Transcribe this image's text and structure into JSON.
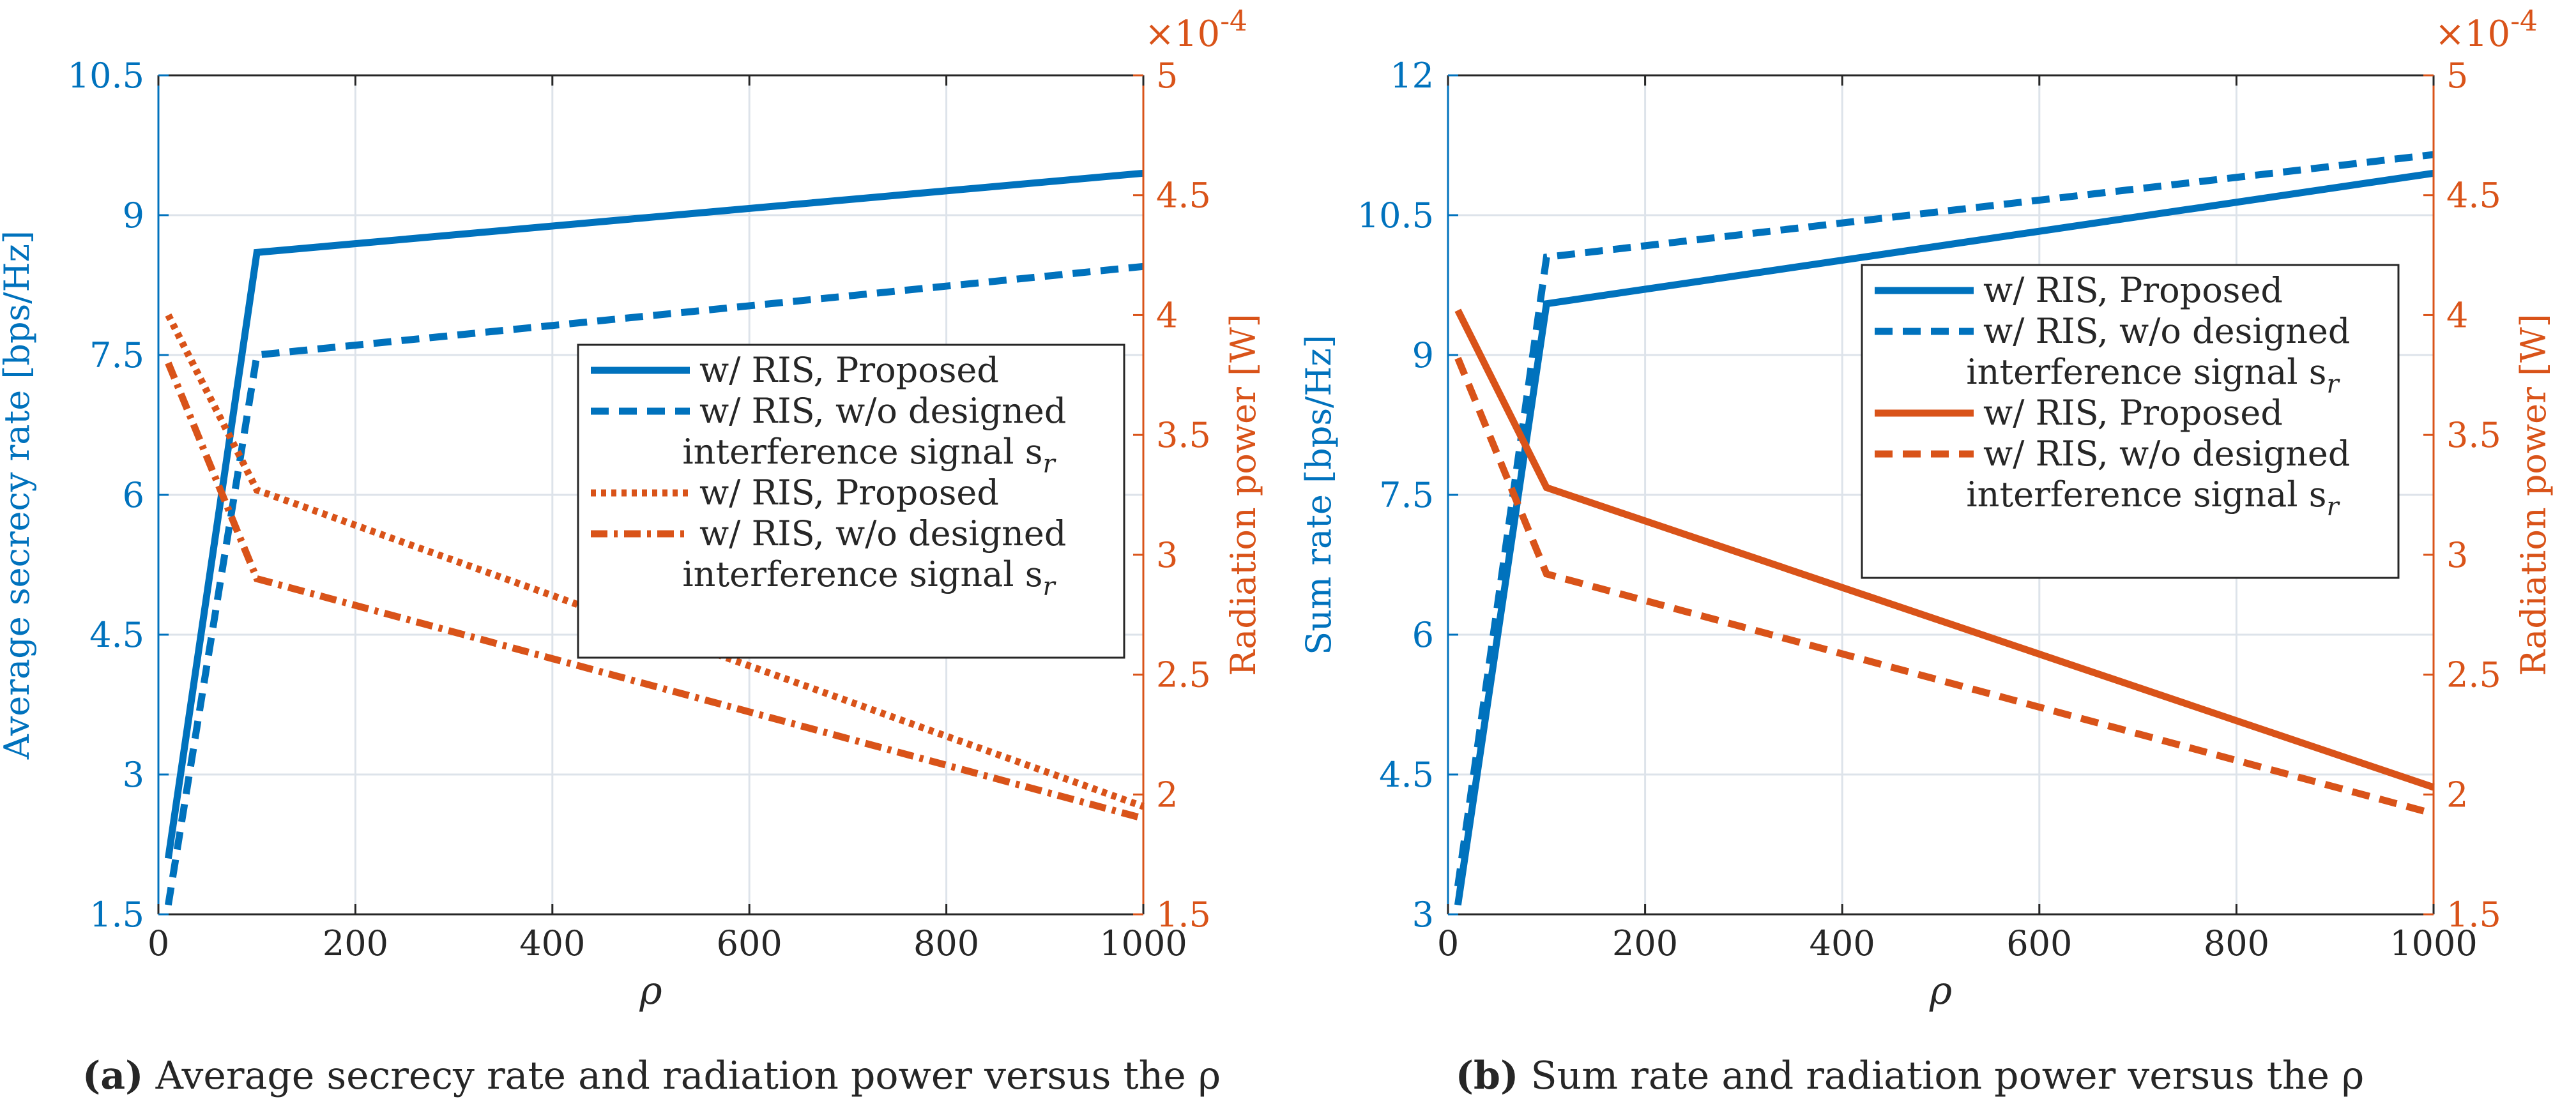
{
  "colors": {
    "blue": "#0072BD",
    "orange": "#D95319",
    "grid": "#dde3ea",
    "axis": "#262626"
  },
  "chart_data": [
    {
      "type": "line",
      "panel": "a",
      "caption_label": "(a)",
      "caption_text": " Average secrecy rate and radiation power versus the ρ",
      "xlabel": "ρ",
      "ylabel_left": "Average secrecy rate [bps/Hz]",
      "ylabel_right": "Radiation power  [W]",
      "right_exponent": "×10",
      "right_exponent_power": "-4",
      "xlim": [
        0,
        1000
      ],
      "xticks": [
        0,
        200,
        400,
        600,
        800,
        1000
      ],
      "xtick_labels": [
        "0",
        "200",
        "400",
        "600",
        "800",
        "1000"
      ],
      "ylim_left": [
        1.5,
        10.5
      ],
      "yticks_left": [
        1.5,
        3,
        4.5,
        6,
        7.5,
        9,
        10.5
      ],
      "ytick_labels_left": [
        "1.5",
        "3",
        "4.5",
        "6",
        "7.5",
        "9",
        "10.5"
      ],
      "ylim_right": [
        1.5,
        5
      ],
      "yticks_right": [
        1.5,
        2,
        2.5,
        3,
        3.5,
        4,
        4.5,
        5
      ],
      "ytick_labels_right": [
        "1.5",
        "2",
        "2.5",
        "3",
        "3.5",
        "4",
        "4.5",
        "5"
      ],
      "legend_position": "center-right",
      "series": [
        {
          "name": "w/ RIS, Proposed",
          "axis": "left",
          "color": "blue",
          "style": "solid",
          "x": [
            10,
            100,
            1000
          ],
          "y": [
            2.1,
            8.6,
            9.45
          ]
        },
        {
          "name": "w/ RIS, w/o designed interference signal s_r",
          "axis": "left",
          "color": "blue",
          "style": "dashed",
          "x": [
            10,
            100,
            1000
          ],
          "y": [
            1.6,
            7.5,
            8.45
          ]
        },
        {
          "name": "w/ RIS, Proposed",
          "axis": "right",
          "color": "orange",
          "style": "dotted",
          "x": [
            10,
            100,
            1000
          ],
          "y": [
            4.0,
            3.27,
            1.95
          ]
        },
        {
          "name": "w/ RIS, w/o designed interference signal s_r",
          "axis": "right",
          "color": "orange",
          "style": "dashdot",
          "x": [
            10,
            100,
            1000
          ],
          "y": [
            3.8,
            2.9,
            1.9
          ]
        }
      ],
      "legend": [
        {
          "line1": "w/ RIS, Proposed",
          "line2": "",
          "color": "blue",
          "style": "solid"
        },
        {
          "line1": "w/ RIS, w/o designed",
          "line2": "interference signal s",
          "sub": "r",
          "color": "blue",
          "style": "dashed"
        },
        {
          "line1": "w/ RIS, Proposed",
          "line2": "",
          "color": "orange",
          "style": "dotted"
        },
        {
          "line1": "w/ RIS, w/o designed",
          "line2": "interference signal s",
          "sub": "r",
          "color": "orange",
          "style": "dashdot"
        }
      ]
    },
    {
      "type": "line",
      "panel": "b",
      "caption_label": "(b)",
      "caption_text": " Sum rate and radiation power versus the ρ",
      "xlabel": "ρ",
      "ylabel_left": "Sum rate [bps/Hz]",
      "ylabel_right": "Radiation power [W]",
      "right_exponent": "×10",
      "right_exponent_power": "-4",
      "xlim": [
        0,
        1000
      ],
      "xticks": [
        0,
        200,
        400,
        600,
        800,
        1000
      ],
      "xtick_labels": [
        "0",
        "200",
        "400",
        "600",
        "800",
        "1000"
      ],
      "ylim_left": [
        3,
        12
      ],
      "yticks_left": [
        3,
        4.5,
        6,
        7.5,
        9,
        10.5,
        12
      ],
      "ytick_labels_left": [
        "3",
        "4.5",
        "6",
        "7.5",
        "9",
        "10.5",
        "12"
      ],
      "ylim_right": [
        1.5,
        5
      ],
      "yticks_right": [
        1.5,
        2,
        2.5,
        3,
        3.5,
        4,
        4.5,
        5
      ],
      "ytick_labels_right": [
        "1.5",
        "2",
        "2.5",
        "3",
        "3.5",
        "4",
        "4.5",
        "5"
      ],
      "legend_position": "upper-right",
      "series": [
        {
          "name": "w/ RIS, Proposed",
          "axis": "left",
          "color": "blue",
          "style": "solid",
          "x": [
            10,
            100,
            1000
          ],
          "y": [
            3.1,
            9.55,
            10.95
          ]
        },
        {
          "name": "w/ RIS, w/o designed interference signal s_r",
          "axis": "left",
          "color": "blue",
          "style": "dashed",
          "x": [
            10,
            100,
            1000
          ],
          "y": [
            3.3,
            10.05,
            11.15
          ]
        },
        {
          "name": "w/ RIS, Proposed",
          "axis": "right",
          "color": "orange",
          "style": "solid",
          "x": [
            10,
            100,
            1000
          ],
          "y": [
            4.02,
            3.28,
            2.03
          ]
        },
        {
          "name": "w/ RIS, w/o designed interference signal s_r",
          "axis": "right",
          "color": "orange",
          "style": "dashed",
          "x": [
            10,
            100,
            1000
          ],
          "y": [
            3.82,
            2.92,
            1.92
          ]
        }
      ],
      "legend": [
        {
          "line1": "w/ RIS, Proposed",
          "line2": "",
          "color": "blue",
          "style": "solid"
        },
        {
          "line1": "w/ RIS, w/o designed",
          "line2": "interference signal s",
          "sub": "r",
          "color": "blue",
          "style": "dashed"
        },
        {
          "line1": "w/ RIS, Proposed",
          "line2": "",
          "color": "orange",
          "style": "solid"
        },
        {
          "line1": "w/ RIS, w/o designed",
          "line2": "interference signal s",
          "sub": "r",
          "color": "orange",
          "style": "dashed"
        }
      ]
    }
  ]
}
